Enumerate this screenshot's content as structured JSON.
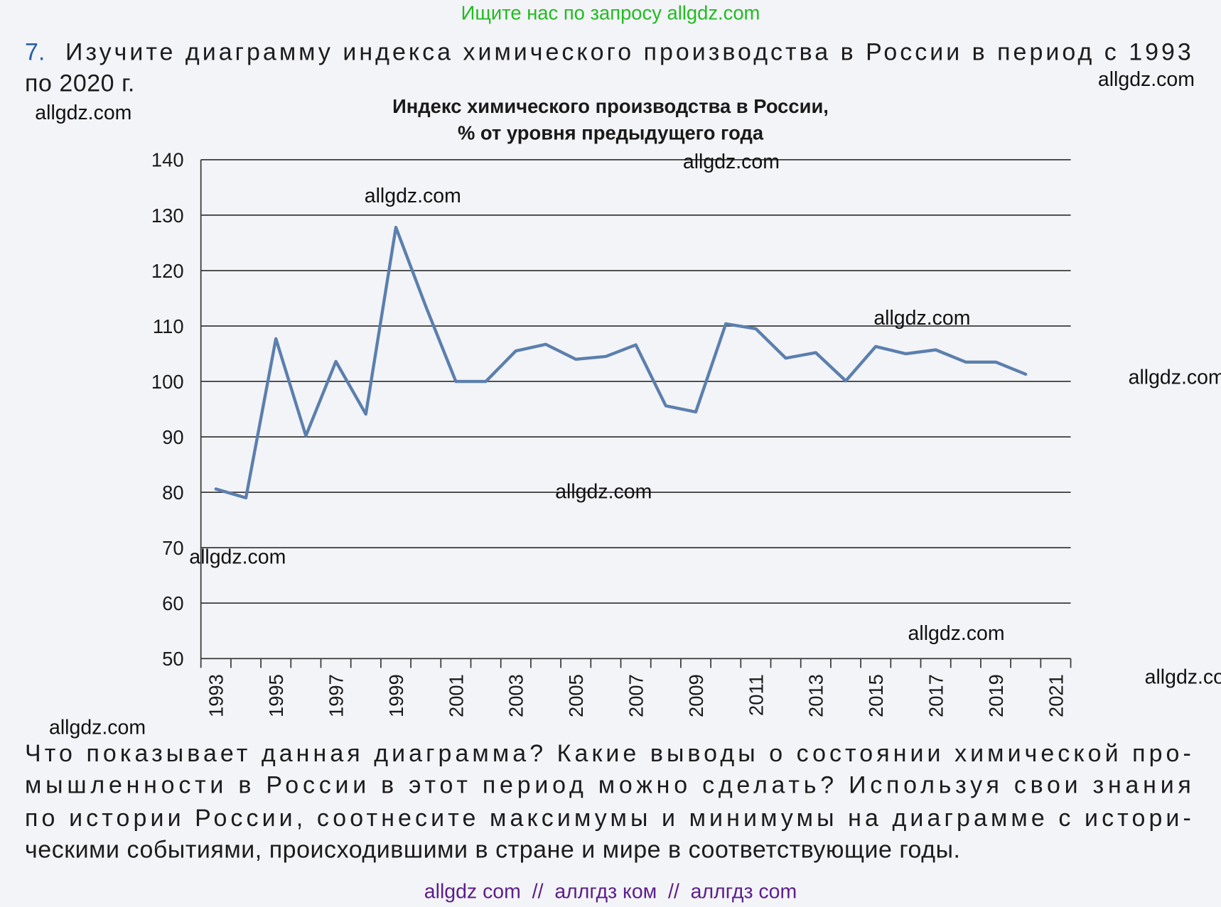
{
  "header_notice": "Ищите нас по запросу allgdz.com",
  "question_number": "7.",
  "task_lines": [
    "Изучите диаграмму индекса химического производства в России в период с 1993",
    "по 2020 г."
  ],
  "chart_data": {
    "type": "line",
    "title": "Индекс химического производства в России,",
    "subtitle": "% от уровня предыдущего года",
    "categories": [
      "1993",
      null,
      "1995",
      null,
      "1997",
      null,
      "1999",
      null,
      "2001",
      null,
      "2003",
      null,
      "2005",
      null,
      "2007",
      null,
      "2009",
      null,
      "2011",
      null,
      "2013",
      null,
      "2015",
      null,
      "2017",
      null,
      "2019",
      null,
      "2021"
    ],
    "values": [
      80.6,
      79,
      107.7,
      90.2,
      103.6,
      94.1,
      127.8,
      113.5,
      100,
      100,
      105.5,
      106.7,
      104,
      104.5,
      106.6,
      95.6,
      94.5,
      110.4,
      109.5,
      104.2,
      105.2,
      100.1,
      106.3,
      105,
      105.7,
      103.5,
      103.5,
      101.3,
      null
    ],
    "color": "#5b7fae",
    "ylim": [
      50,
      140
    ],
    "yticks": [
      50,
      60,
      70,
      80,
      90,
      100,
      110,
      120,
      130,
      140
    ],
    "grid": true
  },
  "question_lines": [
    "Что показывает данная диаграмма? Какие выводы о состоянии химической про-",
    "мышленности в России в этот период можно сделать? Используя свои знания",
    "по истории России, соотнесите максимумы и минимумы на диаграмме с истори-",
    "ческими событиями, происходившими в стране и мире в соответствующие годы."
  ],
  "watermarks": [
    "allgdz.com",
    "allgdz.com",
    "allgdz.com",
    "allgdz.com",
    "allgdz.com",
    "allgdz.com",
    "allgdz.com",
    "allgdz.com",
    "allgdz.com",
    "allgdz.com",
    "allgdz.com"
  ],
  "footer": "allgdz com  //  аллгдз ком  //  аллгдз com"
}
